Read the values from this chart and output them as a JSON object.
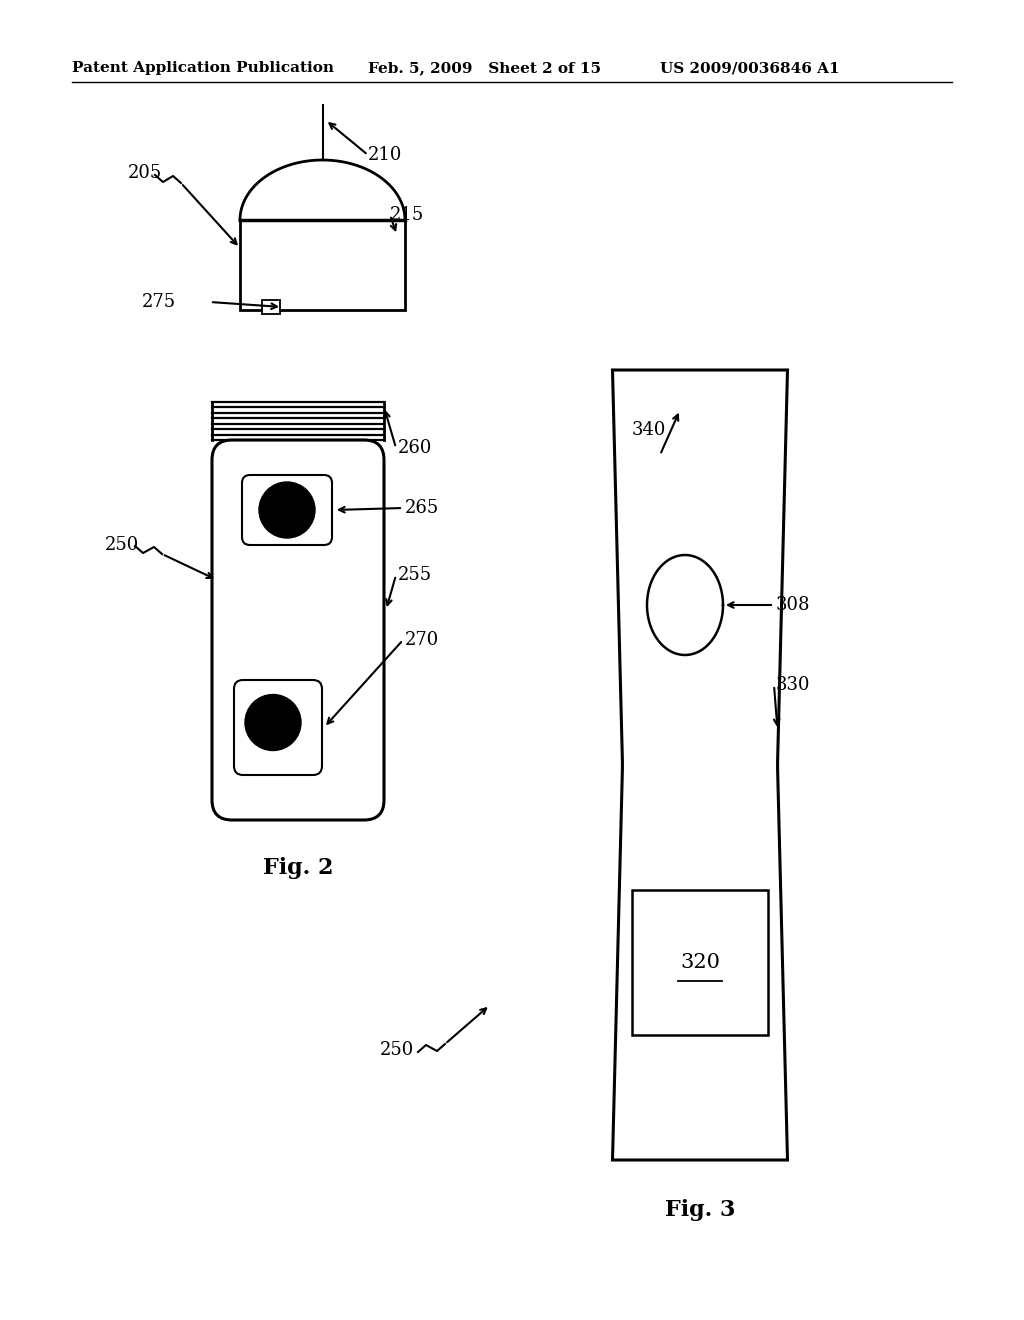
{
  "bg_color": "#ffffff",
  "header_left": "Patent Application Publication",
  "header_mid": "Feb. 5, 2009   Sheet 2 of 15",
  "header_right": "US 2009/0036846 A1",
  "fig2_label": "Fig. 2",
  "fig3_label": "Fig. 3"
}
